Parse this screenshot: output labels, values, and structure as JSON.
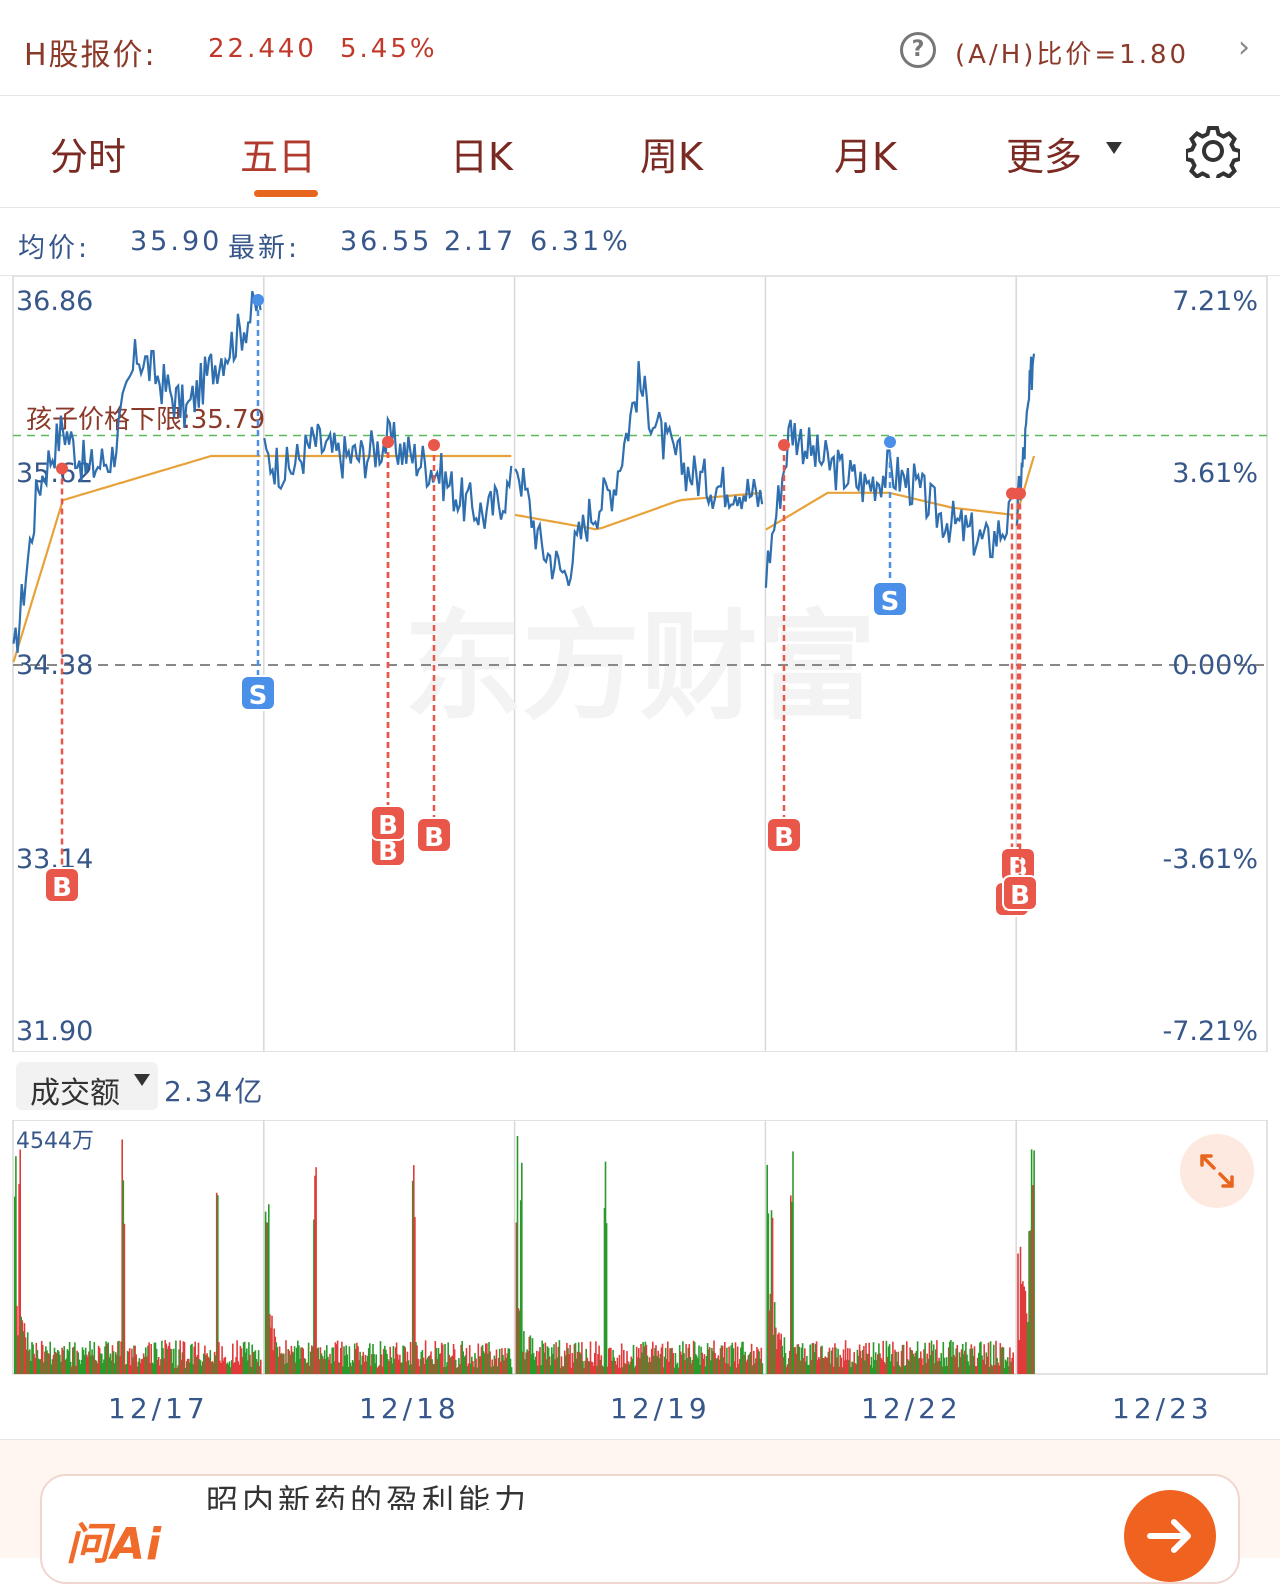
{
  "header": {
    "hk_label": "H股报价:",
    "hk_price": "22.440",
    "hk_change_pct": "5.45%",
    "ah_ratio": "(A/H)比价=1.80"
  },
  "tabs": [
    {
      "label": "分时"
    },
    {
      "label": "五日",
      "active": true
    },
    {
      "label": "日K"
    },
    {
      "label": "周K"
    },
    {
      "label": "月K"
    },
    {
      "label": "更多"
    }
  ],
  "stats": {
    "avg_label": "均价:",
    "avg_value": "35.90",
    "latest_label": "最新:",
    "latest_value": "36.55",
    "change": "2.17",
    "change_pct": "6.31%"
  },
  "chart_data": {
    "type": "line",
    "title": "",
    "x": [
      "12/17",
      "12/18",
      "12/19",
      "12/22",
      "12/23"
    ],
    "y_ticks_left": [
      "36.86",
      "34.38",
      "33.14",
      "31.90"
    ],
    "y_ticks_right": [
      "7.21%",
      "3.61%",
      "0.00%",
      "-3.61%",
      "-7.21%"
    ],
    "extra_left_label": "35.62",
    "ylim": [
      31.9,
      36.86
    ],
    "prev_close": 34.38,
    "reference_line": {
      "label": "孩子价格下限:35.79",
      "value": 35.79
    },
    "series": [
      {
        "values": [
          {
            "day": "12/17",
            "points": [
              34.4,
              35.6,
              36.0,
              35.7,
              35.8,
              36.5,
              36.3,
              36.1,
              36.4,
              36.6,
              36.86
            ]
          },
          {
            "day": "12/18",
            "points": [
              35.8,
              35.7,
              35.9,
              35.8,
              35.8,
              35.9,
              35.8,
              35.7,
              35.5,
              35.4,
              35.6
            ]
          },
          {
            "day": "12/19",
            "points": [
              35.8,
              35.2,
              35.0,
              35.4,
              35.6,
              36.3,
              35.9,
              35.7,
              35.6,
              35.6,
              35.5
            ]
          },
          {
            "day": "12/22",
            "points": [
              35.0,
              36.0,
              35.8,
              35.7,
              35.6,
              35.7,
              35.6,
              35.4,
              35.3,
              35.2,
              35.4
            ]
          },
          {
            "day": "12/23",
            "points": [
              35.4,
              35.9,
              36.55
            ]
          }
        ]
      },
      {
        "values": [
          {
            "day": "12/17",
            "points": [
              34.4,
              35.5,
              35.6,
              35.7,
              35.8,
              35.8
            ]
          },
          {
            "day": "12/18",
            "points": [
              35.8,
              35.8,
              35.8,
              35.8
            ]
          },
          {
            "day": "12/19",
            "points": [
              35.4,
              35.3,
              35.5,
              35.55
            ]
          },
          {
            "day": "12/22",
            "points": [
              35.3,
              35.55,
              35.55,
              35.45,
              35.4
            ]
          },
          {
            "day": "12/23",
            "points": [
              35.4,
              35.8
            ]
          }
        ]
      }
    ],
    "markers": [
      {
        "type": "B",
        "day": "12/17",
        "price": 35.62
      },
      {
        "type": "S",
        "day": "12/17",
        "price": 36.86
      },
      {
        "type": "B",
        "day": "12/18",
        "price": 35.8
      },
      {
        "type": "B",
        "day": "12/18",
        "price": 35.8
      },
      {
        "type": "B",
        "day": "12/18",
        "price": 35.78
      },
      {
        "type": "B",
        "day": "12/22",
        "price": 35.78
      },
      {
        "type": "S",
        "day": "12/22",
        "price": 35.78
      },
      {
        "type": "B",
        "day": "12/22",
        "price": 35.45
      },
      {
        "type": "B",
        "day": "12/22",
        "price": 35.45
      },
      {
        "type": "B",
        "day": "12/22",
        "price": 35.45
      }
    ],
    "watermark": "东方财富"
  },
  "volume": {
    "selector_label": "成交额",
    "total": "2.34亿",
    "max_label": "4544万"
  },
  "colors": {
    "price_line": "#2f6fb0",
    "avg_line": "#e8a23a",
    "buy": "#e8574a",
    "sell": "#4a8fe8",
    "up_bar": "#e03b3b",
    "down_bar": "#2a9a2a",
    "grid": "#d9d9d9"
  },
  "ai_bar": {
    "logo": "问Ai",
    "text": "昭内新药的盈利能力"
  }
}
